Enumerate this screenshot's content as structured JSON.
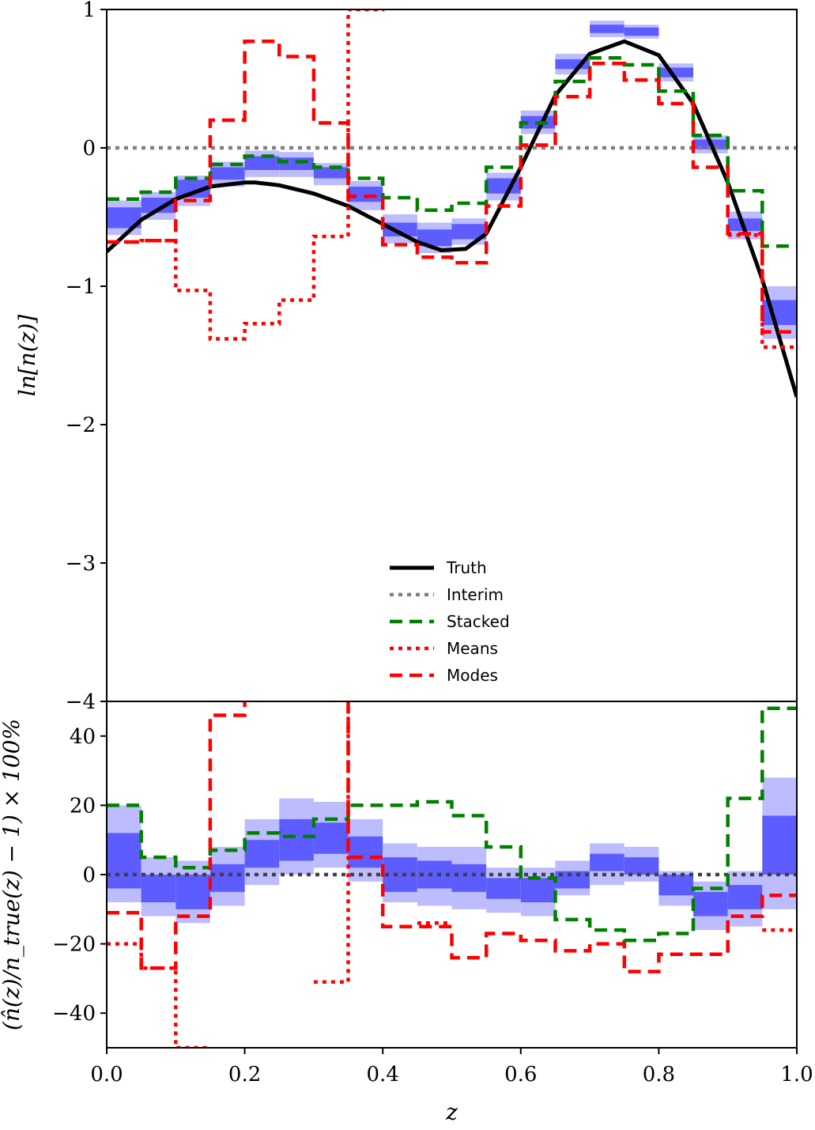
{
  "chart_data": [
    {
      "type": "line",
      "panel": "top",
      "xlabel": "",
      "ylabel": "ln[n(z)]",
      "xlim": [
        0.0,
        1.0
      ],
      "ylim": [
        -4,
        1
      ],
      "ytick_values": [
        1,
        0,
        -1,
        -2,
        -3,
        -4
      ],
      "ytick_labels": [
        "1",
        "0",
        "−1",
        "−2",
        "−3",
        "−4"
      ],
      "legend_position": "lower center",
      "bin_edges": [
        0.0,
        0.05,
        0.1,
        0.15,
        0.2,
        0.25,
        0.3,
        0.35,
        0.4,
        0.45,
        0.5,
        0.55,
        0.6,
        0.65,
        0.7,
        0.75,
        0.8,
        0.85,
        0.9,
        0.95,
        1.0
      ],
      "bands": {
        "color": "#5c5cff",
        "outer_color": "#bcbcff",
        "inner_low": [
          -0.58,
          -0.47,
          -0.36,
          -0.23,
          -0.16,
          -0.16,
          -0.22,
          -0.39,
          -0.64,
          -0.71,
          -0.66,
          -0.33,
          0.14,
          0.57,
          0.83,
          0.81,
          0.51,
          -0.01,
          -0.6,
          -1.28
        ],
        "inner_high": [
          -0.43,
          -0.36,
          -0.23,
          -0.14,
          -0.06,
          -0.07,
          -0.14,
          -0.28,
          -0.54,
          -0.59,
          -0.55,
          -0.22,
          0.23,
          0.64,
          0.89,
          0.87,
          0.58,
          0.06,
          -0.51,
          -1.1
        ],
        "outer_low": [
          -0.63,
          -0.52,
          -0.42,
          -0.28,
          -0.21,
          -0.21,
          -0.27,
          -0.45,
          -0.69,
          -0.76,
          -0.7,
          -0.38,
          0.1,
          0.53,
          0.8,
          0.79,
          0.48,
          -0.04,
          -0.66,
          -1.38
        ],
        "outer_high": [
          -0.38,
          -0.32,
          -0.2,
          -0.1,
          -0.02,
          -0.03,
          -0.11,
          -0.24,
          -0.48,
          -0.54,
          -0.51,
          -0.18,
          0.27,
          0.68,
          0.92,
          0.89,
          0.61,
          0.09,
          -0.46,
          -1.0
        ]
      },
      "series": [
        {
          "name": "Truth",
          "style": "solid",
          "color": "#000000",
          "x": [
            0.0,
            0.05,
            0.1,
            0.15,
            0.2,
            0.215,
            0.25,
            0.3,
            0.35,
            0.4,
            0.45,
            0.485,
            0.52,
            0.55,
            0.6,
            0.65,
            0.7,
            0.75,
            0.8,
            0.85,
            0.9,
            0.95,
            1.0
          ],
          "y": [
            -0.75,
            -0.52,
            -0.37,
            -0.28,
            -0.25,
            -0.25,
            -0.27,
            -0.33,
            -0.42,
            -0.55,
            -0.68,
            -0.74,
            -0.73,
            -0.62,
            -0.14,
            0.38,
            0.68,
            0.77,
            0.67,
            0.32,
            -0.25,
            -0.95,
            -1.8
          ]
        },
        {
          "name": "Interim",
          "style": "dotted",
          "color": "#808080",
          "values": [
            0,
            0,
            0,
            0,
            0,
            0,
            0,
            0,
            0,
            0,
            0,
            0,
            0,
            0,
            0,
            0,
            0,
            0,
            0,
            0
          ]
        },
        {
          "name": "Stacked",
          "style": "dashed",
          "color": "#008000",
          "values": [
            -0.37,
            -0.32,
            -0.22,
            -0.12,
            -0.06,
            -0.1,
            -0.14,
            -0.22,
            -0.36,
            -0.45,
            -0.4,
            -0.14,
            0.18,
            0.48,
            0.65,
            0.6,
            0.41,
            0.09,
            -0.31,
            -0.71
          ]
        },
        {
          "name": "Means",
          "style": "dotted",
          "color": "#ff0000",
          "values": [
            -0.68,
            -0.67,
            -1.03,
            -1.38,
            -1.27,
            -1.1,
            -0.64,
            1.0,
            1.4,
            null,
            null,
            null,
            null,
            null,
            null,
            null,
            null,
            null,
            -0.63,
            -1.44
          ]
        },
        {
          "name": "Modes",
          "style": "dashed",
          "color": "#ff0000",
          "values": [
            -0.68,
            -0.67,
            -0.38,
            0.2,
            0.77,
            0.66,
            0.18,
            -0.35,
            -0.7,
            -0.79,
            -0.83,
            -0.42,
            0.02,
            0.37,
            0.61,
            0.49,
            0.32,
            -0.14,
            -0.62,
            -1.33
          ]
        }
      ]
    },
    {
      "type": "line",
      "panel": "bottom",
      "xlabel": "z",
      "ylabel": "(n̂(z)/n_true(z) − 1) × 100%",
      "xlim": [
        0.0,
        1.0
      ],
      "ylim": [
        -50,
        50
      ],
      "ytick_values": [
        40,
        20,
        0,
        -20,
        -40
      ],
      "ytick_labels": [
        "40",
        "20",
        "0",
        "−20",
        "−40"
      ],
      "xtick_values": [
        0.0,
        0.2,
        0.4,
        0.6,
        0.8,
        1.0
      ],
      "xtick_labels": [
        "0.0",
        "0.2",
        "0.4",
        "0.6",
        "0.8",
        "1.0"
      ],
      "bin_edges": [
        0.0,
        0.05,
        0.1,
        0.15,
        0.2,
        0.25,
        0.3,
        0.35,
        0.4,
        0.45,
        0.5,
        0.55,
        0.6,
        0.65,
        0.7,
        0.75,
        0.8,
        0.85,
        0.9,
        0.95,
        1.0
      ],
      "bands": {
        "color": "#5c5cff",
        "outer_color": "#bcbcff",
        "inner_low": [
          -4,
          -8,
          -10,
          -5,
          2,
          4,
          6,
          2,
          -5,
          -4,
          -5,
          -7,
          -8,
          -4,
          1,
          0,
          -6,
          -12,
          -10,
          0
        ],
        "inner_high": [
          12,
          0,
          0,
          3,
          10,
          16,
          15,
          11,
          5,
          4,
          3,
          -1,
          -1,
          1,
          6,
          5,
          0,
          -5,
          -3,
          17
        ],
        "outer_low": [
          -8,
          -12,
          -14,
          -9,
          -3,
          0,
          2,
          -2,
          -8,
          -9,
          -10,
          -11,
          -12,
          -6,
          -3,
          -2,
          -9,
          -16,
          -15,
          -10
        ],
        "outer_high": [
          20,
          5,
          4,
          8,
          16,
          22,
          21,
          16,
          9,
          8,
          8,
          2,
          2,
          4,
          9,
          8,
          1,
          -2,
          1,
          28
        ]
      },
      "series": [
        {
          "name": "Interim",
          "style": "dotted",
          "color": "#404040",
          "values": [
            0,
            0,
            0,
            0,
            0,
            0,
            0,
            0,
            0,
            0,
            0,
            0,
            0,
            0,
            0,
            0,
            0,
            0,
            0,
            0
          ]
        },
        {
          "name": "Stacked",
          "style": "dashed",
          "color": "#008000",
          "values": [
            20,
            5,
            2,
            7,
            12,
            11,
            16,
            20,
            20,
            21,
            17,
            8,
            -1,
            -13,
            -16,
            -19,
            -17,
            -4,
            22,
            48
          ]
        },
        {
          "name": "Means",
          "style": "dotted",
          "color": "#ff0000",
          "values": [
            -20,
            -27,
            -50,
            null,
            null,
            null,
            -31,
            60,
            null,
            -14,
            null,
            null,
            null,
            null,
            null,
            null,
            null,
            null,
            null,
            -16
          ]
        },
        {
          "name": "Modes",
          "style": "dashed",
          "color": "#ff0000",
          "values": [
            -11,
            -27,
            -12,
            46,
            60,
            60,
            60,
            5,
            -15,
            -15,
            -24,
            -17,
            -19,
            -22,
            -20,
            -28,
            -23,
            -23,
            -12,
            -6
          ]
        }
      ]
    }
  ],
  "legend": [
    {
      "label": "Truth",
      "style": "solid",
      "color": "#000000"
    },
    {
      "label": "Interim",
      "style": "dotted",
      "color": "#808080"
    },
    {
      "label": "Stacked",
      "style": "dashed",
      "color": "#008000"
    },
    {
      "label": "Means",
      "style": "dotted",
      "color": "#ff0000"
    },
    {
      "label": "Modes",
      "style": "dashed",
      "color": "#ff0000"
    }
  ]
}
